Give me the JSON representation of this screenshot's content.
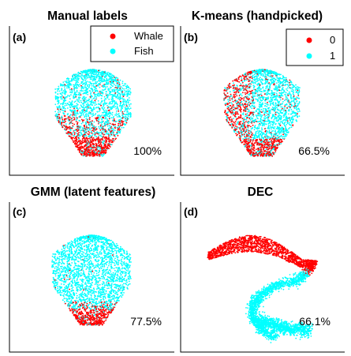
{
  "chart_data": [
    {
      "type": "scatter",
      "title": "Manual labels",
      "panel_label": "(a)",
      "annotation": "100%",
      "legend": {
        "placement": "top-right",
        "entries": [
          "Whale",
          "Fish"
        ]
      },
      "series": [
        {
          "name": "Whale",
          "color": "#ff0000"
        },
        {
          "name": "Fish",
          "color": "#00ffff"
        }
      ],
      "grid": false
    },
    {
      "type": "scatter",
      "title": "K-means (handpicked)",
      "panel_label": "(b)",
      "annotation": "66.5%",
      "legend": {
        "placement": "top-right",
        "entries": [
          "0",
          "1"
        ]
      },
      "series": [
        {
          "name": "0",
          "color": "#ff0000"
        },
        {
          "name": "1",
          "color": "#00ffff"
        }
      ],
      "grid": false
    },
    {
      "type": "scatter",
      "title": "GMM (latent features)",
      "panel_label": "(c)",
      "annotation": "77.5%",
      "series": [
        {
          "name": "",
          "color": "#ff0000"
        },
        {
          "name": "",
          "color": "#00ffff"
        }
      ],
      "grid": false
    },
    {
      "type": "scatter",
      "title": "DEC",
      "panel_label": "(d)",
      "annotation": "66.1%",
      "series": [
        {
          "name": "",
          "color": "#ff0000"
        },
        {
          "name": "",
          "color": "#00ffff"
        }
      ],
      "grid": false
    }
  ]
}
